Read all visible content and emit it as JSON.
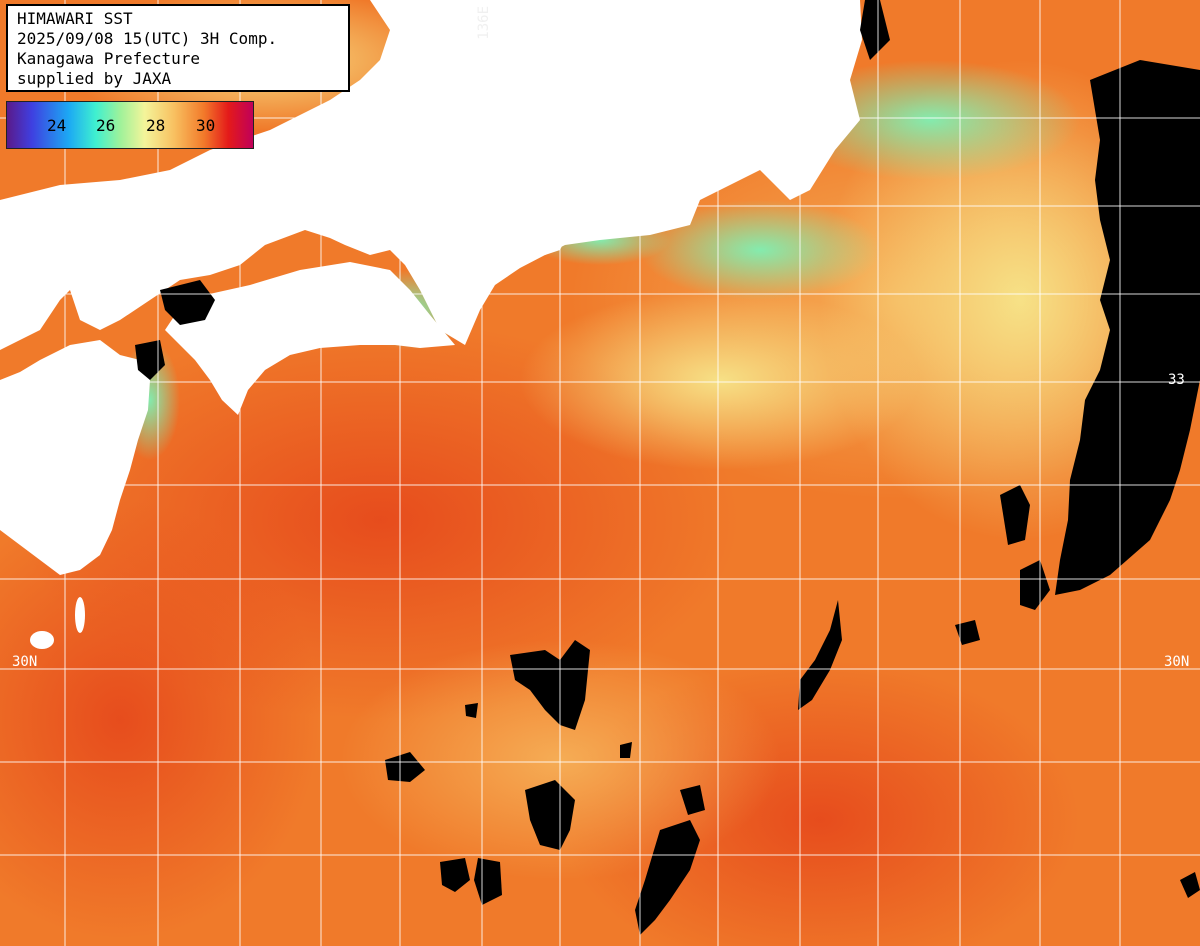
{
  "header": {
    "line1": "HIMAWARI SST",
    "line2": "2025/09/08 15(UTC) 3H Comp.",
    "line3": "Kanagawa Prefecture",
    "line4": "supplied by JAXA"
  },
  "legend": {
    "ticks": [
      "24",
      "26",
      "28",
      "30"
    ]
  },
  "grid_labels": {
    "lon_136": "136E",
    "lat_33_right": "33",
    "lat_30_left": "30N",
    "lat_30_right": "30N"
  },
  "colors": {
    "land": "#ffffff",
    "cloud_mask": "#000000",
    "warm_sea": "#f07a2a",
    "hot_sea": "#e8501f",
    "cool_sea": "#f6e07a",
    "coastal_cold": "#6ef0b0",
    "grid": "#ffffff"
  }
}
